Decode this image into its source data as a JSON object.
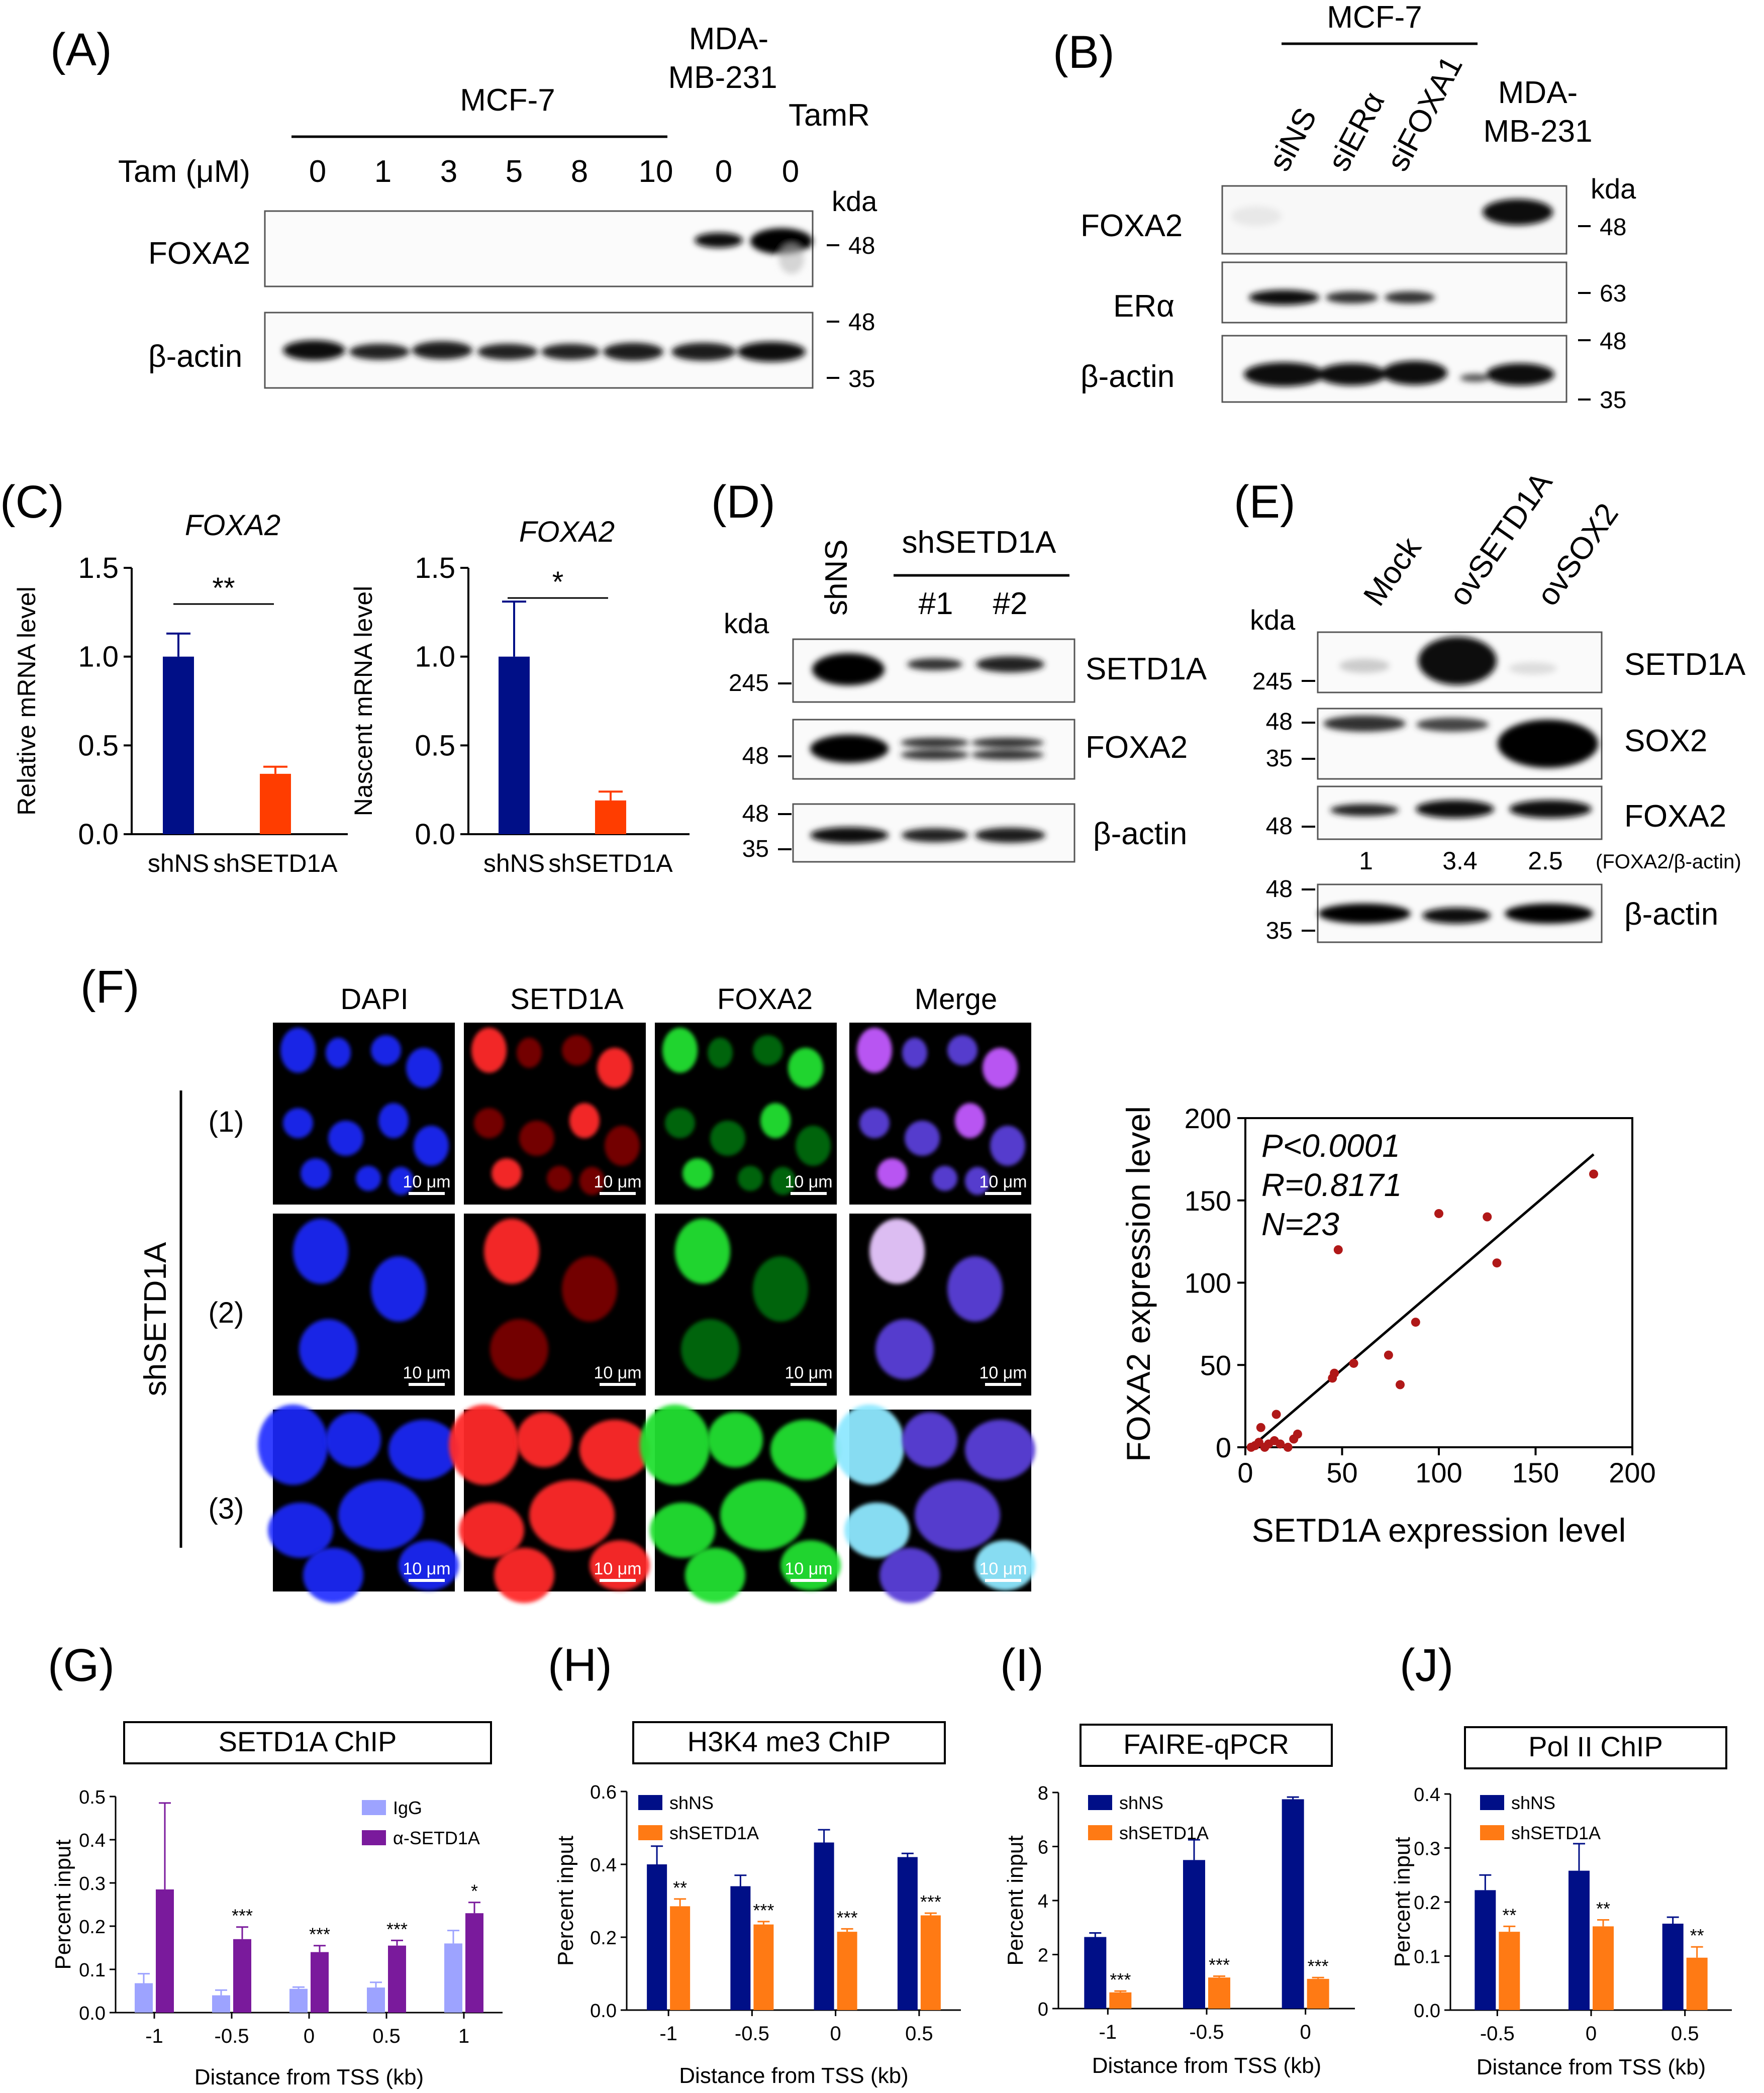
{
  "panel_A": {
    "letter": "(A)",
    "cell_group": "MCF-7",
    "mda_line1": "MDA-",
    "mda_line2": "MB-231",
    "tamr": "TamR",
    "tam_label": "Tam (μM)",
    "doses": [
      "0",
      "1",
      "3",
      "5",
      "8",
      "10",
      "0",
      "0"
    ],
    "kda": "kda",
    "blot_labels": [
      "FOXA2",
      "β-actin"
    ],
    "markers": [
      "48",
      "48",
      "35"
    ]
  },
  "panel_B": {
    "letter": "(B)",
    "cell_group": "MCF-7",
    "lanes": [
      "siNS",
      "siERα",
      "siFOXA1"
    ],
    "mda_line1": "MDA-",
    "mda_line2": "MB-231",
    "kda": "kda",
    "blot_labels": [
      "FOXA2",
      "ERα",
      "β-actin"
    ],
    "markers": [
      "48",
      "63",
      "48",
      "35"
    ]
  },
  "panel_C": {
    "letter": "(C)",
    "gene": "FOXA2",
    "ylabel_left": "Relative mRNA level",
    "ylabel_right": "Nascent mRNA level",
    "yticks": [
      "1.5",
      "1.0",
      "0.5",
      "0.0"
    ],
    "categories": [
      "shNS",
      "shSETD1A"
    ],
    "sig_left": "**",
    "sig_right": "*",
    "colors": {
      "shNS": "#000f87",
      "shSETD1A": "#ff3d00"
    }
  },
  "panel_D": {
    "letter": "(D)",
    "lane_shns": "shNS",
    "group": "shSETD1A",
    "sub_lanes": [
      "#1",
      "#2"
    ],
    "kda": "kda",
    "blot_labels": [
      "SETD1A",
      "FOXA2",
      "β-actin"
    ],
    "markers": [
      "245",
      "48",
      "48",
      "35"
    ]
  },
  "panel_E": {
    "letter": "(E)",
    "lanes": [
      "Mock",
      "ovSETD1A",
      "ovSOX2"
    ],
    "kda": "kda",
    "blot_labels": [
      "SETD1A",
      "SOX2",
      "FOXA2",
      "β-actin"
    ],
    "markers": [
      "245",
      "48",
      "35",
      "48",
      "48",
      "35"
    ],
    "ratios": [
      "1",
      "3.4",
      "2.5"
    ],
    "ratio_label": "(FOXA2/β-actin)"
  },
  "panel_F": {
    "letter": "(F)",
    "columns": [
      "DAPI",
      "SETD1A",
      "FOXA2",
      "Merge"
    ],
    "rows": [
      "(1)",
      "(2)",
      "(3)"
    ],
    "group_label": "shSETD1A",
    "scale_bar": "10 μm"
  },
  "chart_data": [
    {
      "id": "C-left",
      "type": "bar",
      "title": "FOXA2",
      "ylabel": "Relative mRNA level",
      "categories": [
        "shNS",
        "shSETD1A"
      ],
      "values": [
        1.0,
        0.34
      ],
      "errors": [
        0.13,
        0.04
      ],
      "ylim": [
        0,
        1.5
      ],
      "significance": "**"
    },
    {
      "id": "C-right",
      "type": "bar",
      "title": "FOXA2",
      "ylabel": "Nascent mRNA level",
      "categories": [
        "shNS",
        "shSETD1A"
      ],
      "values": [
        1.0,
        0.19
      ],
      "errors": [
        0.31,
        0.05
      ],
      "ylim": [
        0,
        1.5
      ],
      "significance": "*"
    },
    {
      "id": "F-scatter",
      "type": "scatter",
      "xlabel": "SETD1A expression level",
      "ylabel": "FOXA2 expression level",
      "xlim": [
        0,
        200
      ],
      "ylim": [
        0,
        200
      ],
      "xticks": [
        "0",
        "50",
        "100",
        "150",
        "200"
      ],
      "yticks": [
        "200",
        "150",
        "100",
        "50",
        "0"
      ],
      "stats": [
        "P<0.0001",
        "R=0.8171",
        "N=23"
      ],
      "fit_line": [
        [
          5,
          2
        ],
        [
          180,
          178
        ]
      ],
      "points": [
        [
          3,
          0
        ],
        [
          5,
          1
        ],
        [
          7,
          3
        ],
        [
          8,
          12
        ],
        [
          10,
          0
        ],
        [
          12,
          2
        ],
        [
          15,
          4
        ],
        [
          16,
          20
        ],
        [
          18,
          2
        ],
        [
          22,
          0
        ],
        [
          25,
          5
        ],
        [
          27,
          8
        ],
        [
          45,
          42
        ],
        [
          46,
          45
        ],
        [
          48,
          120
        ],
        [
          56,
          51
        ],
        [
          74,
          56
        ],
        [
          80,
          38
        ],
        [
          88,
          76
        ],
        [
          100,
          142
        ],
        [
          125,
          140
        ],
        [
          130,
          112
        ],
        [
          180,
          166
        ]
      ],
      "point_color": "#b01818"
    },
    {
      "id": "G",
      "type": "bar",
      "letter": "(G)",
      "title": "SETD1A ChIP",
      "xlabel": "Distance from TSS (kb)",
      "ylabel": "Percent input",
      "categories": [
        "-1",
        "-0.5",
        "0",
        "0.5",
        "1"
      ],
      "yticks": [
        "0.0",
        "0.1",
        "0.2",
        "0.3",
        "0.4",
        "0.5"
      ],
      "ylim": [
        0,
        0.5
      ],
      "series": [
        {
          "name": "IgG",
          "color": "#9da3ff",
          "values": [
            0.068,
            0.04,
            0.055,
            0.058,
            0.16
          ],
          "errors": [
            0.022,
            0.012,
            0.004,
            0.012,
            0.03
          ]
        },
        {
          "name": "α-SETD1A",
          "color": "#7a1a9c",
          "values": [
            0.285,
            0.17,
            0.14,
            0.155,
            0.23
          ],
          "errors": [
            0.2,
            0.028,
            0.015,
            0.012,
            0.025
          ]
        }
      ],
      "significance": [
        "",
        "***",
        "***",
        "***",
        "*"
      ]
    },
    {
      "id": "H",
      "type": "bar",
      "letter": "(H)",
      "title": "H3K4 me3 ChIP",
      "xlabel": "Distance from TSS (kb)",
      "ylabel": "Percent input",
      "categories": [
        "-1",
        "-0.5",
        "0",
        "0.5"
      ],
      "yticks": [
        "0.0",
        "0.2",
        "0.4",
        "0.6"
      ],
      "ylim": [
        0,
        0.6
      ],
      "series": [
        {
          "name": "shNS",
          "color": "#000f87",
          "values": [
            0.4,
            0.34,
            0.46,
            0.42
          ],
          "errors": [
            0.05,
            0.03,
            0.035,
            0.01
          ]
        },
        {
          "name": "shSETD1A",
          "color": "#ff7a14",
          "values": [
            0.285,
            0.235,
            0.215,
            0.26
          ],
          "errors": [
            0.02,
            0.008,
            0.008,
            0.006
          ]
        }
      ],
      "significance": [
        "**",
        "***",
        "***",
        "***"
      ]
    },
    {
      "id": "I",
      "type": "bar",
      "letter": "(I)",
      "title": "FAIRE-qPCR",
      "xlabel": "Distance from TSS (kb)",
      "ylabel": "Percent input",
      "categories": [
        "-1",
        "-0.5",
        "0"
      ],
      "yticks": [
        "0",
        "2",
        "4",
        "6",
        "8"
      ],
      "ylim": [
        0,
        8
      ],
      "series": [
        {
          "name": "shNS",
          "color": "#000f87",
          "values": [
            2.65,
            5.5,
            7.75
          ],
          "errors": [
            0.15,
            0.75,
            0.08
          ]
        },
        {
          "name": "shSETD1A",
          "color": "#ff7a14",
          "values": [
            0.6,
            1.15,
            1.1
          ],
          "errors": [
            0.05,
            0.05,
            0.05
          ]
        }
      ],
      "significance": [
        "***",
        "***",
        "***"
      ]
    },
    {
      "id": "J",
      "type": "bar",
      "letter": "(J)",
      "title": "Pol II ChIP",
      "xlabel": "Distance from TSS (kb)",
      "ylabel": "Percent input",
      "categories": [
        "-0.5",
        "0",
        "0.5"
      ],
      "yticks": [
        "0.0",
        "0.1",
        "0.2",
        "0.3",
        "0.4"
      ],
      "ylim": [
        0,
        0.4
      ],
      "series": [
        {
          "name": "shNS",
          "color": "#000f87",
          "values": [
            0.222,
            0.258,
            0.16
          ],
          "errors": [
            0.028,
            0.05,
            0.012
          ]
        },
        {
          "name": "shSETD1A",
          "color": "#ff7a14",
          "values": [
            0.145,
            0.155,
            0.097
          ],
          "errors": [
            0.01,
            0.012,
            0.02
          ]
        }
      ],
      "significance": [
        "**",
        "**",
        "**"
      ]
    }
  ]
}
